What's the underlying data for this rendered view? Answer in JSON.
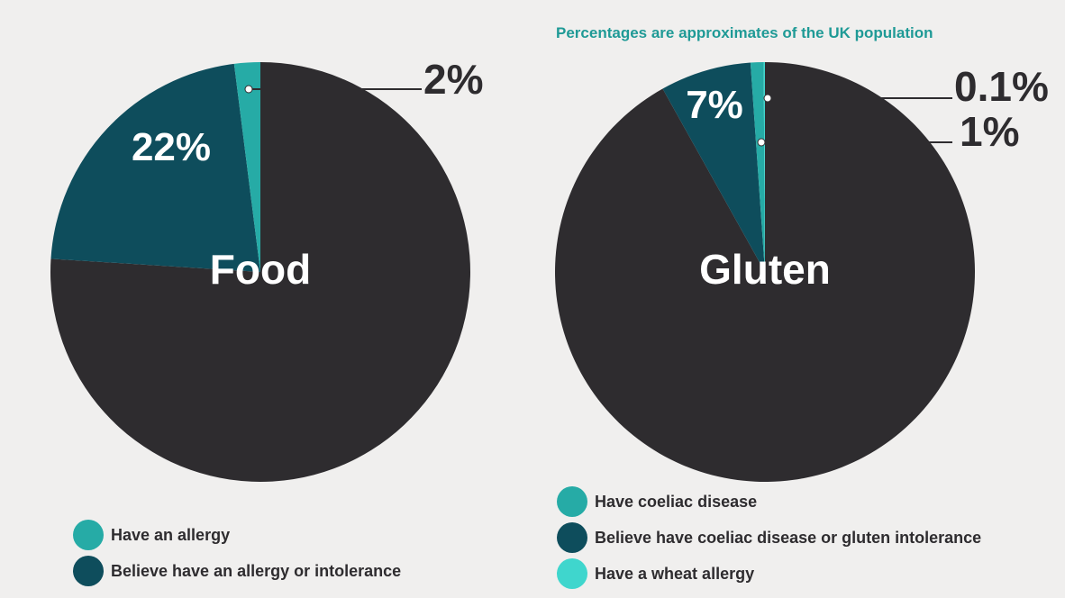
{
  "subtitle": "Percentages are approximates of the UK population",
  "colors": {
    "background": "#f0efee",
    "rest": "#2e2c2f",
    "dark_teal": "#0e4d5c",
    "teal": "#26aba6",
    "bright_teal": "#3fd6cd",
    "subtitle": "#1f9a96"
  },
  "chart_data": [
    {
      "type": "pie",
      "title": "Food",
      "slices": [
        {
          "label": "Have an allergy",
          "value": 2,
          "display": "2%",
          "color": "#26aba6"
        },
        {
          "label": "Believe have an allergy or intolerance",
          "value": 22,
          "display": "22%",
          "color": "#0e4d5c"
        },
        {
          "label": "",
          "value": 76,
          "display": "",
          "color": "#2e2c2f"
        }
      ],
      "legend": [
        {
          "label": "Have an allergy",
          "color": "#26aba6"
        },
        {
          "label": "Believe have an allergy or intolerance",
          "color": "#0e4d5c"
        }
      ]
    },
    {
      "type": "pie",
      "title": "Gluten",
      "slices": [
        {
          "label": "Have a wheat allergy",
          "value": 0.1,
          "display": "0.1%",
          "color": "#3fd6cd"
        },
        {
          "label": "Have coeliac disease",
          "value": 1,
          "display": "1%",
          "color": "#26aba6"
        },
        {
          "label": "Believe have coeliac disease or gluten intolerance",
          "value": 7,
          "display": "7%",
          "color": "#0e4d5c"
        },
        {
          "label": "",
          "value": 91.9,
          "display": "",
          "color": "#2e2c2f"
        }
      ],
      "legend": [
        {
          "label": "Have coeliac disease",
          "color": "#26aba6"
        },
        {
          "label": "Believe have coeliac disease or gluten intolerance",
          "color": "#0e4d5c"
        },
        {
          "label": "Have a wheat allergy",
          "color": "#3fd6cd"
        }
      ]
    }
  ]
}
